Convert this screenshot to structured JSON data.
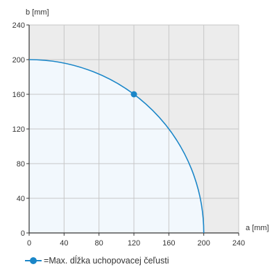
{
  "chart_data": {
    "type": "line",
    "xlabel": "a [mm]",
    "ylabel": "b [mm]",
    "xlim": [
      0,
      240
    ],
    "ylim": [
      0,
      240
    ],
    "xticks": [
      0,
      40,
      80,
      120,
      160,
      200,
      240
    ],
    "yticks": [
      0,
      40,
      80,
      120,
      160,
      200,
      240
    ],
    "grid": true,
    "series": [
      {
        "name": "Max. dĺžka uchopovacej čeľusti",
        "color": "#1a86c8",
        "shape": "quarter-ellipse",
        "radius": 200,
        "x": [
          0,
          40,
          80,
          120,
          160,
          200
        ],
        "y": [
          200,
          196,
          183,
          160,
          120,
          0
        ],
        "marker": {
          "x": 120,
          "y": 160
        }
      }
    ],
    "legend_position": "bottom-left"
  },
  "legend": {
    "prefix": "= ",
    "text": "Max. dĺžka uchopovacej čeľusti"
  },
  "colors": {
    "outside_area": "#ececec",
    "inside_area": "#f2f8fd",
    "grid": "#c6c6c6",
    "axis": "#333333",
    "curve": "#1a86c8"
  }
}
